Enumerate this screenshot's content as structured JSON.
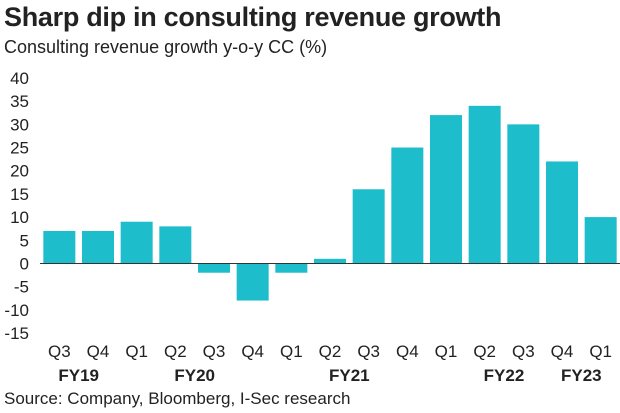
{
  "title": "Sharp dip in consulting revenue growth",
  "subtitle": "Consulting revenue growth y-o-y CC (%)",
  "source": "Source: Company, Bloomberg, I-Sec research",
  "chart_data": {
    "type": "bar",
    "title": "Sharp dip in consulting revenue growth",
    "ylabel": "Consulting revenue growth y-o-y CC (%)",
    "xlabel": "",
    "ylim": [
      -15,
      40
    ],
    "yticks": [
      40,
      35,
      30,
      25,
      20,
      15,
      10,
      5,
      0,
      -5,
      -10,
      -15
    ],
    "grid": false,
    "bar_color": "#1ebdcc",
    "categories": [
      "Q3",
      "Q4",
      "Q1",
      "Q2",
      "Q3",
      "Q4",
      "Q1",
      "Q2",
      "Q3",
      "Q4",
      "Q1",
      "Q2",
      "Q3",
      "Q4",
      "Q1"
    ],
    "values": [
      7,
      7,
      9,
      8,
      -2,
      -8,
      -2,
      1,
      16,
      25,
      32,
      34,
      30,
      22,
      10
    ],
    "groups": [
      {
        "label": "FY19",
        "center_index": 0.5
      },
      {
        "label": "FY20",
        "center_index": 3.5
      },
      {
        "label": "FY21",
        "center_index": 7.5
      },
      {
        "label": "FY22",
        "center_index": 11.5
      },
      {
        "label": "FY23",
        "center_index": 13.5
      }
    ]
  }
}
